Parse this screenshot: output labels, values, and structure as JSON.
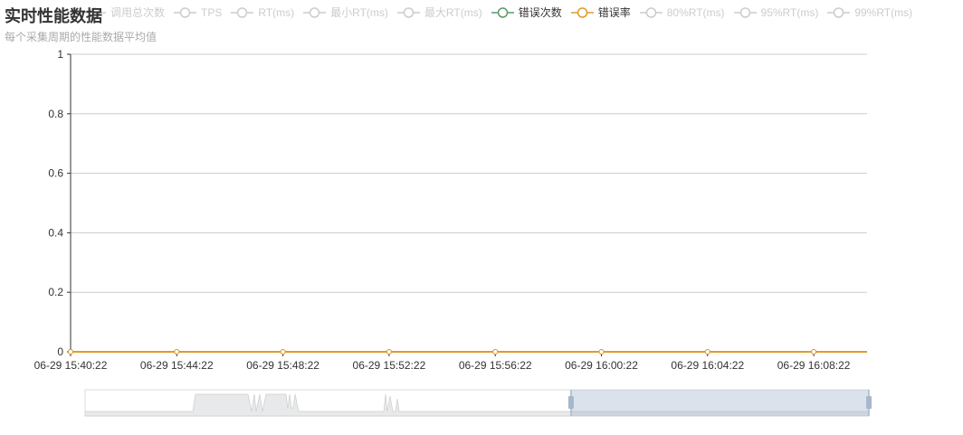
{
  "title": "实时性能数据",
  "subtitle": "每个采集周期的性能数据平均值",
  "legend": [
    {
      "label": "调用总次数",
      "active": false,
      "color": "#cccccc"
    },
    {
      "label": "TPS",
      "active": false,
      "color": "#cccccc"
    },
    {
      "label": "RT(ms)",
      "active": false,
      "color": "#cccccc"
    },
    {
      "label": "最小RT(ms)",
      "active": false,
      "color": "#cccccc"
    },
    {
      "label": "最大RT(ms)",
      "active": false,
      "color": "#cccccc"
    },
    {
      "label": "错误次数",
      "active": true,
      "color": "#5b9b6a"
    },
    {
      "label": "错误率",
      "active": true,
      "color": "#e09a2a"
    },
    {
      "label": "80%RT(ms)",
      "active": false,
      "color": "#cccccc"
    },
    {
      "label": "95%RT(ms)",
      "active": false,
      "color": "#cccccc"
    },
    {
      "label": "99%RT(ms)",
      "active": false,
      "color": "#cccccc"
    }
  ],
  "chart_data": {
    "type": "line",
    "x": [
      "06-29 15:40:22",
      "06-29 15:44:22",
      "06-29 15:48:22",
      "06-29 15:52:22",
      "06-29 15:56:22",
      "06-29 16:00:22",
      "06-29 16:04:22",
      "06-29 16:08:22"
    ],
    "ylim": [
      0,
      1
    ],
    "yticks": [
      "0",
      "0.2",
      "0.4",
      "0.6",
      "0.8",
      "1"
    ],
    "grid": true,
    "series": [
      {
        "name": "错误次数",
        "color": "#5b9b6a",
        "values": [
          0,
          0,
          0,
          0,
          0,
          0,
          0,
          0
        ]
      },
      {
        "name": "错误率",
        "color": "#e09a2a",
        "values": [
          0,
          0,
          0,
          0,
          0,
          0,
          0,
          0
        ]
      }
    ],
    "data_zoom": {
      "start_percent": 62,
      "end_percent": 100
    }
  }
}
